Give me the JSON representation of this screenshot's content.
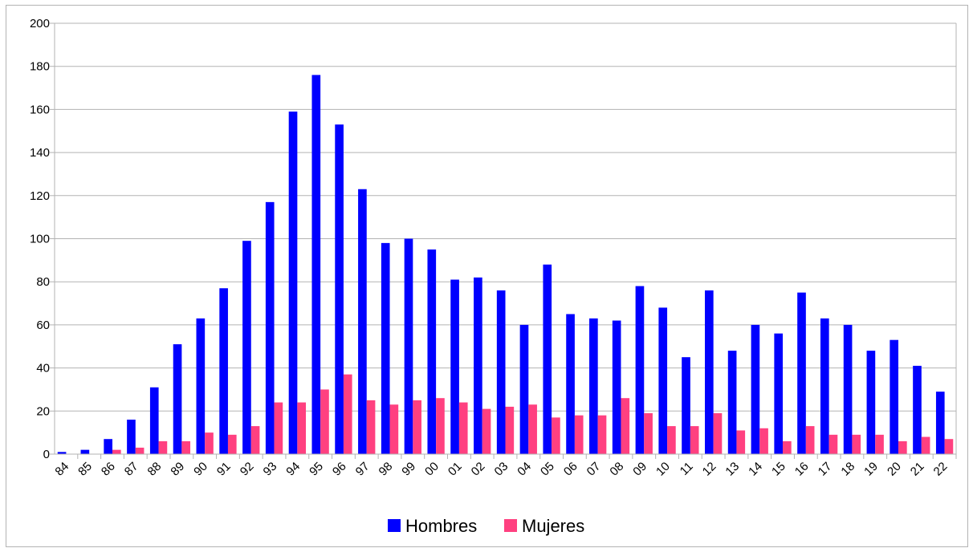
{
  "chart_data": {
    "type": "bar",
    "categories": [
      "84",
      "85",
      "86",
      "87",
      "88",
      "89",
      "90",
      "91",
      "92",
      "93",
      "94",
      "95",
      "96",
      "97",
      "98",
      "99",
      "00",
      "01",
      "02",
      "03",
      "04",
      "05",
      "06",
      "07",
      "08",
      "09",
      "10",
      "11",
      "12",
      "13",
      "14",
      "15",
      "16",
      "17",
      "18",
      "19",
      "20",
      "21",
      "22"
    ],
    "series": [
      {
        "name": "Hombres",
        "color": "#0000ff",
        "values": [
          1,
          2,
          7,
          16,
          31,
          51,
          63,
          77,
          99,
          117,
          159,
          176,
          153,
          123,
          98,
          100,
          95,
          81,
          82,
          76,
          60,
          88,
          65,
          63,
          62,
          78,
          68,
          45,
          76,
          48,
          60,
          56,
          75,
          63,
          60,
          48,
          53,
          41,
          29
        ]
      },
      {
        "name": "Mujeres",
        "color": "#ff4080",
        "values": [
          0,
          0,
          2,
          3,
          6,
          6,
          10,
          9,
          13,
          24,
          24,
          30,
          37,
          25,
          23,
          25,
          26,
          24,
          21,
          22,
          23,
          17,
          18,
          18,
          26,
          19,
          13,
          13,
          19,
          11,
          12,
          6,
          13,
          9,
          9,
          9,
          6,
          8,
          7
        ]
      }
    ],
    "ylim": [
      0,
      200
    ],
    "yticks": [
      0,
      20,
      40,
      60,
      80,
      100,
      120,
      140,
      160,
      180,
      200
    ],
    "grid": true,
    "legend": "bottom"
  }
}
